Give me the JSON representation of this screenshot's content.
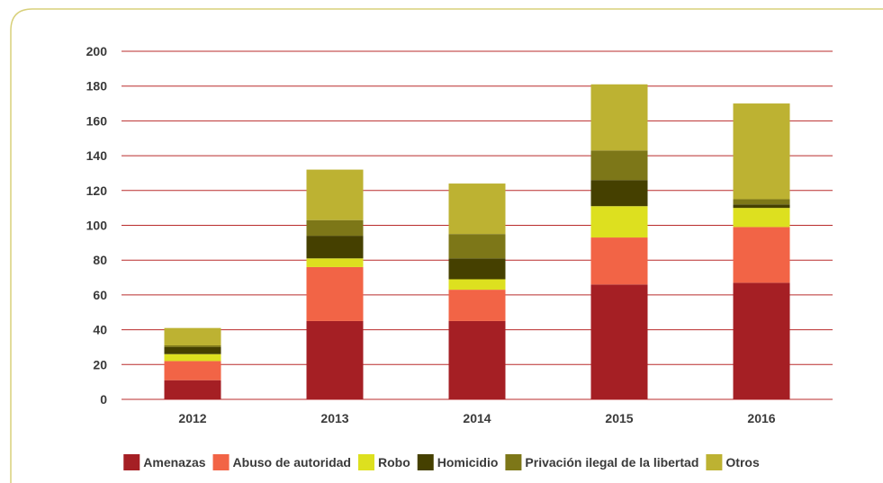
{
  "chart_data": {
    "type": "bar",
    "stacked": true,
    "categories": [
      "2012",
      "2013",
      "2014",
      "2015",
      "2016"
    ],
    "series": [
      {
        "name": "Amenazas",
        "color": "#a51f24",
        "values": [
          11,
          45,
          45,
          66,
          67
        ]
      },
      {
        "name": "Abuso de autoridad",
        "color": "#f26446",
        "values": [
          11,
          31,
          18,
          27,
          32
        ]
      },
      {
        "name": "Robo",
        "color": "#dde01f",
        "values": [
          4,
          5,
          6,
          18,
          11
        ]
      },
      {
        "name": "Homicidio",
        "color": "#454000",
        "values": [
          4,
          13,
          12,
          15,
          2
        ]
      },
      {
        "name": "Privación ilegal de la libertad",
        "color": "#7d7718",
        "values": [
          1,
          9,
          14,
          17,
          3
        ]
      },
      {
        "name": "Otros",
        "color": "#bdb232",
        "values": [
          10,
          29,
          29,
          38,
          55
        ]
      }
    ],
    "yticks": [
      "0",
      "20",
      "40",
      "60",
      "80",
      "100",
      "120",
      "140",
      "160",
      "180",
      "200"
    ],
    "ylim": [
      0,
      200
    ],
    "grid": true,
    "gridline_color": "#b92b2b",
    "frame_color": "#d8d07a",
    "legend_position": "bottom"
  }
}
